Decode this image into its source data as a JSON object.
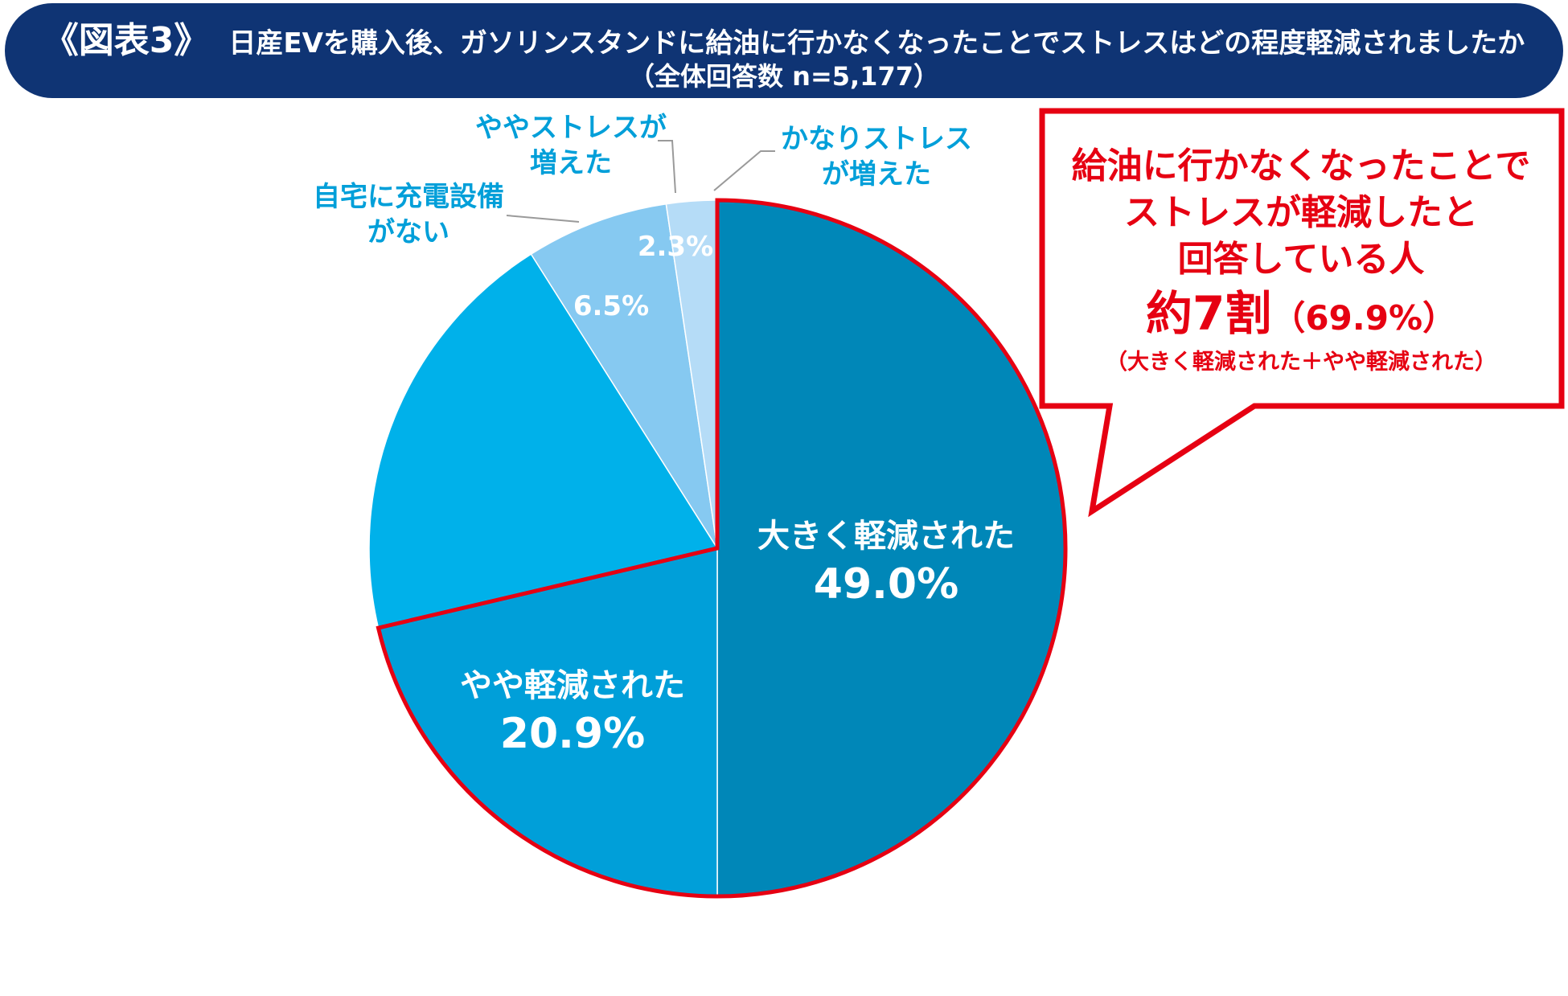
{
  "header": {
    "tag": "《図表3》",
    "question": "日産EVを購入後、ガソリンスタンドに給油に行かなくなったことでストレスはどの程度軽減されましたか",
    "sample": "（全体回答数 n=5,177）"
  },
  "chart_data": {
    "type": "pie",
    "start": "12 o'clock, clockwise",
    "slices": [
      {
        "label": "大きく軽減された",
        "value": 49.0,
        "value_text": "49.0%",
        "color": "#0087b8"
      },
      {
        "label": "やや軽減された",
        "value": 20.9,
        "value_text": "20.9%",
        "color": "#009fd9"
      },
      {
        "label": "",
        "value": 19.3,
        "value_text": "",
        "color": "#00b1ea"
      },
      {
        "label": "自宅に充電設備がない",
        "value": 6.5,
        "value_text": "6.5%",
        "color": "#86c9f1"
      },
      {
        "label": "ややストレスが増えた",
        "value": 2.3,
        "value_text": "2.3%",
        "color": "#b5dcf7"
      },
      {
        "label": "かなりストレスが増えた",
        "value": 0.0,
        "value_text": "",
        "color": "#ddeefb"
      }
    ],
    "outside_labels": {
      "no_charger": [
        "自宅に充電設備",
        "がない"
      ],
      "slightly_more": [
        "ややストレスが",
        "増えた"
      ],
      "much_more": [
        "かなりストレス",
        "が増えた"
      ]
    },
    "inside_labels": {
      "greatly": "大きく軽減された",
      "slightly": "やや軽減された"
    },
    "highlight": {
      "slices": [
        0,
        1
      ],
      "total": 69.9,
      "color": "#e60012"
    }
  },
  "callout": {
    "line1": "給油に行かなくなったことで",
    "line2": "ストレスが軽減したと",
    "line3": "回答している人",
    "big": "約7割",
    "big_pct": "（69.9%）",
    "note": "（大きく軽減された＋やや軽減された）",
    "border_color": "#e60012"
  }
}
